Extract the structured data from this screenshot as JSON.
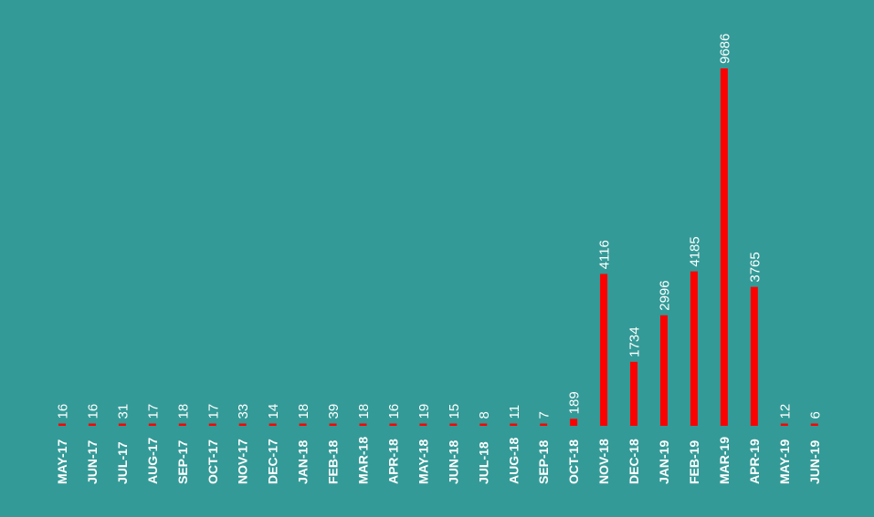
{
  "colors": {
    "background": "#339a97",
    "bar": "#ff0000",
    "text": "#ffffff"
  },
  "chart_data": {
    "type": "bar",
    "title": "",
    "xlabel": "",
    "ylabel": "",
    "grid": false,
    "legend": "none",
    "ylim": [
      0,
      9686
    ],
    "categories": [
      "MAY-17",
      "JUN-17",
      "JUL-17",
      "AUG-17",
      "SEP-17",
      "OCT-17",
      "NOV-17",
      "DEC-17",
      "JAN-18",
      "FEB-18",
      "MAR-18",
      "APR-18",
      "MAY-18",
      "JUN-18",
      "JUL-18",
      "AUG-18",
      "SEP-18",
      "OCT-18",
      "NOV-18",
      "DEC-18",
      "JAN-19",
      "FEB-19",
      "MAR-19",
      "APR-19",
      "MAY-19",
      "JUN-19"
    ],
    "values": [
      16,
      16,
      31,
      17,
      18,
      17,
      33,
      14,
      18,
      39,
      18,
      16,
      19,
      15,
      8,
      11,
      7,
      189,
      4116,
      1734,
      2996,
      4185,
      9686,
      3765,
      12,
      6
    ]
  }
}
